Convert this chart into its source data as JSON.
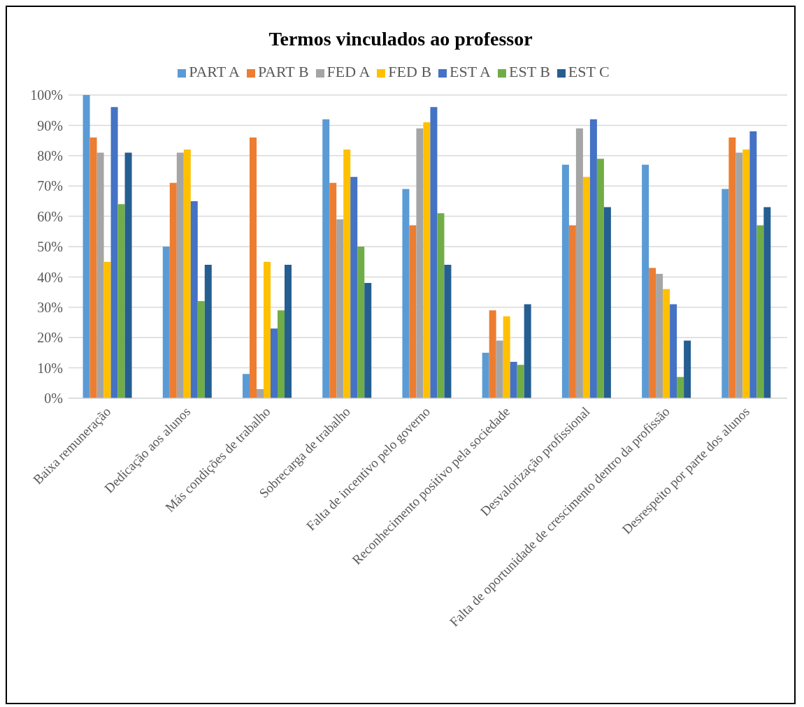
{
  "chart_data": {
    "type": "bar",
    "title": "Termos vinculados ao professor",
    "categories": [
      "Baixa remuneração",
      "Dedicação aos alunos",
      "Más condições de trabalho",
      "Sobrecarga de trabalho",
      "Falta de incentivo pelo governo",
      "Reconhecimento positivo pela sociedade",
      "Desvalorização profissional",
      "Falta de oportunidade de crescimento dentro da profissão",
      "Desrespeito por parte dos alunos"
    ],
    "series": [
      {
        "name": "PART A",
        "color": "#5b9bd5",
        "values": [
          100,
          50,
          8,
          92,
          69,
          15,
          77,
          77,
          69
        ]
      },
      {
        "name": "PART B",
        "color": "#ed7d31",
        "values": [
          86,
          71,
          86,
          71,
          57,
          29,
          57,
          43,
          86
        ]
      },
      {
        "name": "FED A",
        "color": "#a5a5a5",
        "values": [
          81,
          81,
          3,
          59,
          89,
          19,
          89,
          41,
          81
        ]
      },
      {
        "name": "FED B",
        "color": "#ffc000",
        "values": [
          45,
          82,
          45,
          82,
          91,
          27,
          73,
          36,
          82
        ]
      },
      {
        "name": "EST A",
        "color": "#4472c4",
        "values": [
          96,
          65,
          23,
          73,
          96,
          12,
          92,
          31,
          88
        ]
      },
      {
        "name": "EST B",
        "color": "#70ad47",
        "values": [
          64,
          32,
          29,
          50,
          61,
          11,
          79,
          7,
          57
        ]
      },
      {
        "name": "EST C",
        "color": "#255e91",
        "values": [
          81,
          44,
          44,
          38,
          44,
          31,
          63,
          19,
          63
        ]
      }
    ],
    "ylim": [
      0,
      100
    ],
    "yticks": [
      {
        "value": 0,
        "label": "0%"
      },
      {
        "value": 10,
        "label": "10%"
      },
      {
        "value": 20,
        "label": "20%"
      },
      {
        "value": 30,
        "label": "30%"
      },
      {
        "value": 40,
        "label": "40%"
      },
      {
        "value": 50,
        "label": "50%"
      },
      {
        "value": 60,
        "label": "60%"
      },
      {
        "value": 70,
        "label": "70%"
      },
      {
        "value": 80,
        "label": "80%"
      },
      {
        "value": 90,
        "label": "90%"
      },
      {
        "value": 100,
        "label": "100%"
      }
    ],
    "grid": "y",
    "legend": "top"
  }
}
